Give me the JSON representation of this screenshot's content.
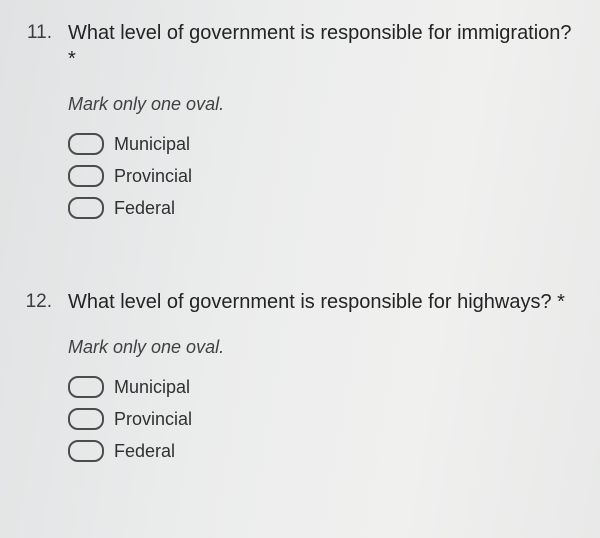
{
  "questions": [
    {
      "number": "11.",
      "text": "What level of government is responsible for immigration? *",
      "instruction": "Mark only one oval.",
      "options": [
        "Municipal",
        "Provincial",
        "Federal"
      ]
    },
    {
      "number": "12.",
      "text": "What level of government is responsible for highways? *",
      "instruction": "Mark only one oval.",
      "options": [
        "Municipal",
        "Provincial",
        "Federal"
      ]
    }
  ],
  "styling": {
    "background_gradient": [
      "#e0e2e3",
      "#ebecec",
      "#f0f0ef",
      "#e8e9e8"
    ],
    "text_color": "#2a2c2d",
    "oval_border_color": "#4a4c4d",
    "question_fontsize": 20,
    "instruction_fontsize": 18,
    "option_fontsize": 18,
    "oval_width": 32,
    "oval_height": 18
  }
}
